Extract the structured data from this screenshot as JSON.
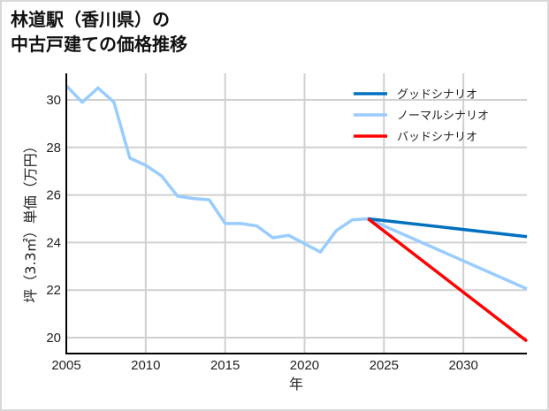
{
  "title": {
    "line1": "林道駅（香川県）の",
    "line2": "中古戸建ての価格推移"
  },
  "chart_data": {
    "type": "line",
    "title": "林道駅（香川県）の中古戸建ての価格推移",
    "xlabel": "年",
    "ylabel": "坪（3.3㎡）単価（万円）",
    "xlim": [
      2005,
      2034
    ],
    "ylim": [
      19.4,
      31.2
    ],
    "grid": true,
    "legend_position": "upper right",
    "x_ticks": [
      2005,
      2010,
      2015,
      2020,
      2025,
      2030
    ],
    "y_ticks": [
      20,
      22,
      24,
      26,
      28,
      30
    ],
    "series": [
      {
        "name": "グッドシナリオ",
        "color": "#0070c0",
        "x": [
          2024,
          2034
        ],
        "values": [
          25.0,
          24.25
        ]
      },
      {
        "name": "ノーマルシナリオ",
        "color": "#99ccff",
        "x": [
          2005,
          2006,
          2007,
          2008,
          2009,
          2010,
          2011,
          2012,
          2013,
          2014,
          2015,
          2016,
          2017,
          2018,
          2019,
          2020,
          2021,
          2022,
          2023,
          2024,
          2034
        ],
        "values": [
          30.6,
          29.9,
          30.5,
          29.9,
          27.55,
          27.25,
          26.8,
          25.95,
          25.85,
          25.8,
          24.8,
          24.8,
          24.7,
          24.2,
          24.3,
          23.95,
          23.6,
          24.5,
          24.95,
          25.0,
          22.05
        ]
      },
      {
        "name": "バッドシナリオ",
        "color": "#ff0000",
        "x": [
          2024,
          2034
        ],
        "values": [
          25.0,
          19.85
        ]
      }
    ]
  }
}
